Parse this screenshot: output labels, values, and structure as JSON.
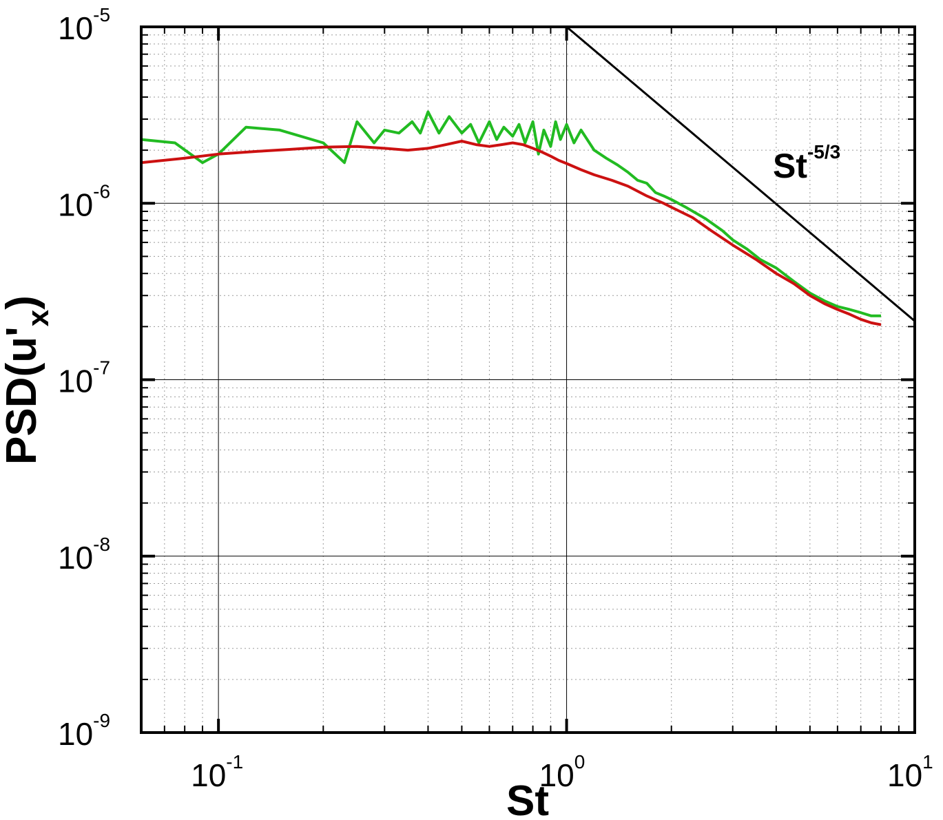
{
  "chart_data": {
    "type": "line",
    "xlabel": "St",
    "ylabel_main": "PSD(u'",
    "ylabel_sub": "x",
    "ylabel_close": ")",
    "xscale": "log",
    "yscale": "log",
    "xlim": [
      0.06,
      10
    ],
    "ylim": [
      1e-09,
      1e-05
    ],
    "grid": true,
    "x_ticks": [
      {
        "value": 0.1,
        "base": "10",
        "exp": "-1"
      },
      {
        "value": 1,
        "base": "10",
        "exp": "0"
      },
      {
        "value": 10,
        "base": "10",
        "exp": "1"
      }
    ],
    "y_ticks": [
      {
        "value": 1e-09,
        "base": "10",
        "exp": "-9"
      },
      {
        "value": 1e-08,
        "base": "10",
        "exp": "-8"
      },
      {
        "value": 1e-07,
        "base": "10",
        "exp": "-7"
      },
      {
        "value": 1e-06,
        "base": "10",
        "exp": "-6"
      },
      {
        "value": 1e-05,
        "base": "10",
        "exp": "-5"
      }
    ],
    "annotation": {
      "base": "St",
      "exp": "-5/3",
      "x": 2.0,
      "y": 1.4e-06
    },
    "reference_line": {
      "x": [
        1.0,
        10.0
      ],
      "y": [
        1e-05,
        2.15e-07
      ],
      "color": "#000000"
    },
    "series": [
      {
        "color": "#22bb22",
        "x": [
          0.06,
          0.075,
          0.09,
          0.1,
          0.12,
          0.15,
          0.2,
          0.23,
          0.25,
          0.28,
          0.3,
          0.33,
          0.36,
          0.38,
          0.4,
          0.43,
          0.46,
          0.5,
          0.53,
          0.56,
          0.6,
          0.63,
          0.66,
          0.7,
          0.73,
          0.76,
          0.8,
          0.83,
          0.86,
          0.9,
          0.93,
          0.96,
          1.0,
          1.05,
          1.1,
          1.2,
          1.3,
          1.4,
          1.5,
          1.6,
          1.7,
          1.8,
          1.9,
          2.0,
          2.2,
          2.5,
          2.8,
          3.0,
          3.3,
          3.6,
          4.0,
          4.5,
          5.0,
          5.5,
          6.0,
          6.5,
          7.0,
          7.5,
          8.0
        ],
        "y": [
          2.3e-06,
          2.2e-06,
          1.7e-06,
          1.9e-06,
          2.7e-06,
          2.6e-06,
          2.2e-06,
          1.7e-06,
          2.9e-06,
          2.2e-06,
          2.6e-06,
          2.5e-06,
          2.9e-06,
          2.5e-06,
          3.3e-06,
          2.5e-06,
          3.1e-06,
          2.5e-06,
          2.8e-06,
          2.2e-06,
          2.9e-06,
          2.3e-06,
          2.7e-06,
          2.4e-06,
          2.8e-06,
          2.2e-06,
          2.9e-06,
          1.9e-06,
          2.6e-06,
          2.1e-06,
          2.9e-06,
          2.3e-06,
          2.8e-06,
          2.2e-06,
          2.6e-06,
          2e-06,
          1.8e-06,
          1.65e-06,
          1.5e-06,
          1.35e-06,
          1.3e-06,
          1.15e-06,
          1.1e-06,
          1.05e-06,
          9.5e-07,
          8.2e-07,
          7e-07,
          6.2e-07,
          5.5e-07,
          4.8e-07,
          4.3e-07,
          3.6e-07,
          3.1e-07,
          2.8e-07,
          2.6e-07,
          2.5e-07,
          2.4e-07,
          2.3e-07,
          2.3e-07
        ]
      },
      {
        "color": "#cc1111",
        "x": [
          0.06,
          0.08,
          0.1,
          0.13,
          0.16,
          0.2,
          0.25,
          0.3,
          0.35,
          0.4,
          0.45,
          0.5,
          0.55,
          0.6,
          0.65,
          0.7,
          0.75,
          0.8,
          0.85,
          0.9,
          0.95,
          1.0,
          1.1,
          1.2,
          1.35,
          1.5,
          1.7,
          1.9,
          2.0,
          2.3,
          2.6,
          3.0,
          3.5,
          4.0,
          4.5,
          5.0,
          5.5,
          6.0,
          6.5,
          7.0,
          7.5,
          8.0
        ],
        "y": [
          1.7e-06,
          1.8e-06,
          1.9e-06,
          1.97e-06,
          2.02e-06,
          2.08e-06,
          2.1e-06,
          2.05e-06,
          2e-06,
          2.05e-06,
          2.15e-06,
          2.25e-06,
          2.15e-06,
          2.1e-06,
          2.15e-06,
          2.2e-06,
          2.15e-06,
          2.05e-06,
          1.95e-06,
          1.85e-06,
          1.75e-06,
          1.68e-06,
          1.55e-06,
          1.45e-06,
          1.35e-06,
          1.25e-06,
          1.1e-06,
          1e-06,
          9.5e-07,
          8.3e-07,
          7e-07,
          5.8e-07,
          4.8e-07,
          4e-07,
          3.5e-07,
          3e-07,
          2.7e-07,
          2.5e-07,
          2.35e-07,
          2.2e-07,
          2.1e-07,
          2.05e-07
        ]
      }
    ]
  }
}
